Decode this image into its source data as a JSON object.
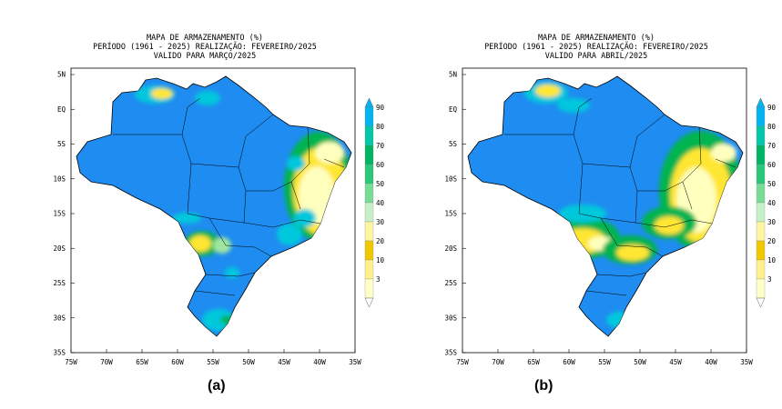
{
  "panels": [
    {
      "id": "a",
      "title_lines": [
        "MAPA DE ARMAZENAMENTO (%)",
        "PERÍODO (1961 - 2025) REALIZAÇÃO: FEVEREIRO/2025",
        "VALIDO PARA MARÇO/2025"
      ],
      "caption": "(a)"
    },
    {
      "id": "b",
      "title_lines": [
        "MAPA DE ARMAZENAMENTO (%)",
        "PERÍODO (1961 - 2025) REALIZAÇÃO: FEVEREIRO/2025",
        "VALIDO PARA ABRIL/2025"
      ],
      "caption": "(b)"
    }
  ],
  "axes": {
    "lat_labels": [
      "5N",
      "EQ",
      "5S",
      "10S",
      "15S",
      "20S",
      "25S",
      "30S",
      "35S"
    ],
    "lon_labels": [
      "75W",
      "70W",
      "65W",
      "60W",
      "55W",
      "50W",
      "45W",
      "40W",
      "35W"
    ]
  },
  "colorbar": {
    "labels": [
      "90",
      "80",
      "70",
      "60",
      "50",
      "40",
      "30",
      "20",
      "10",
      "3"
    ],
    "colors": [
      "#00b4f0",
      "#00c8a8",
      "#00b464",
      "#28c878",
      "#78dc96",
      "#c8f0c8",
      "#fff5a0",
      "#f0c800",
      "#fff08c",
      "#ffffc8"
    ]
  },
  "colors": {
    "base": "#1e8cf0",
    "wet": "#00c8dc",
    "green": "#00b450",
    "light_green": "#a0e6a0",
    "yellow": "#ffe632",
    "pale_yellow": "#ffffbe",
    "white": "#ffffff"
  }
}
